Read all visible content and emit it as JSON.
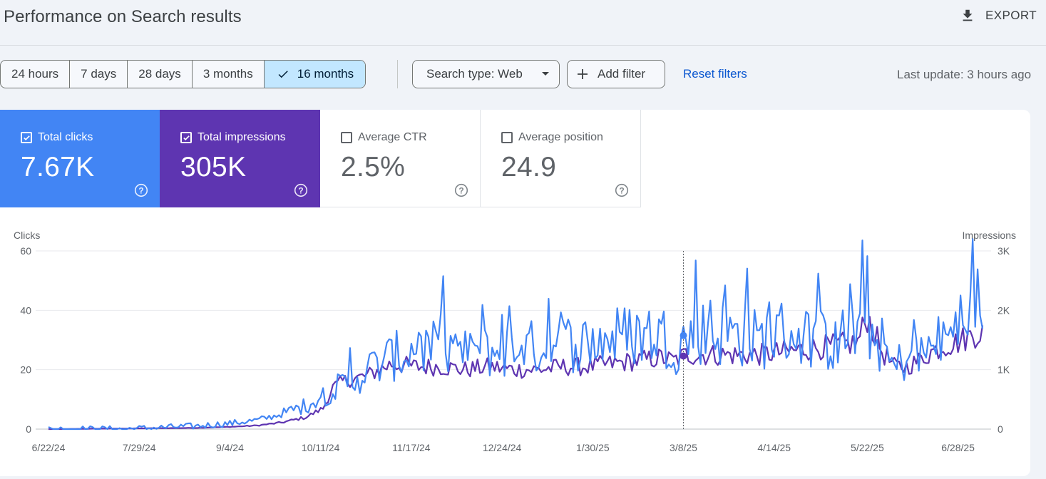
{
  "header": {
    "title": "Performance on Search results",
    "export_label": "EXPORT"
  },
  "toolbar": {
    "ranges": [
      "24 hours",
      "7 days",
      "28 days",
      "3 months",
      "16 months"
    ],
    "selected_range": "16 months",
    "search_type": "Search type: Web",
    "add_filter": "Add filter",
    "reset_filters": "Reset filters",
    "last_update": "Last update: 3 hours ago"
  },
  "metrics": {
    "clicks": {
      "label": "Total clicks",
      "value": "7.67K",
      "checked": true,
      "color": "#4285f4"
    },
    "impressions": {
      "label": "Total impressions",
      "value": "305K",
      "checked": true,
      "color": "#5e35b1"
    },
    "ctr": {
      "label": "Average CTR",
      "value": "2.5%",
      "checked": false
    },
    "position": {
      "label": "Average position",
      "value": "24.9",
      "checked": false
    }
  },
  "chart_data": {
    "type": "line",
    "left_axis_title": "Clicks",
    "right_axis_title": "Impressions",
    "left_ticks": [
      "60",
      "40",
      "20",
      "0"
    ],
    "right_ticks": [
      "3K",
      "2K",
      "1K",
      "0"
    ],
    "ylim_left": [
      0,
      60
    ],
    "ylim_right": [
      0,
      3000
    ],
    "x_ticks": [
      "6/22/24",
      "7/29/24",
      "9/4/24",
      "10/11/24",
      "11/17/24",
      "12/24/24",
      "1/30/25",
      "3/8/25",
      "4/14/25",
      "5/22/25",
      "6/28/25"
    ],
    "x_domain_days": [
      0,
      381
    ],
    "x_tick_days": [
      0,
      37,
      74,
      111,
      148,
      185,
      222,
      259,
      296,
      334,
      371
    ],
    "marker_day": 259,
    "grid": true,
    "series": [
      {
        "name": "Total clicks",
        "axis": "left",
        "color": "#4285f4",
        "anchors": [
          [
            0,
            0
          ],
          [
            30,
            0
          ],
          [
            60,
            1
          ],
          [
            75,
            2
          ],
          [
            85,
            3
          ],
          [
            95,
            5
          ],
          [
            105,
            8
          ],
          [
            115,
            13
          ],
          [
            122,
            15
          ],
          [
            130,
            20
          ],
          [
            140,
            24
          ],
          [
            150,
            27
          ],
          [
            160,
            27
          ],
          [
            170,
            25
          ],
          [
            180,
            26
          ],
          [
            190,
            26
          ],
          [
            200,
            28
          ],
          [
            210,
            29
          ],
          [
            220,
            29
          ],
          [
            230,
            31
          ],
          [
            240,
            32
          ],
          [
            250,
            32
          ],
          [
            255,
            28
          ],
          [
            260,
            30
          ],
          [
            265,
            33
          ],
          [
            270,
            32
          ],
          [
            280,
            32
          ],
          [
            290,
            30
          ],
          [
            300,
            33
          ],
          [
            310,
            31
          ],
          [
            320,
            29
          ],
          [
            330,
            33
          ],
          [
            335,
            33
          ],
          [
            340,
            28
          ],
          [
            345,
            20
          ],
          [
            350,
            25
          ],
          [
            355,
            24
          ],
          [
            360,
            27
          ],
          [
            365,
            30
          ],
          [
            370,
            33
          ],
          [
            375,
            36
          ],
          [
            381,
            36
          ]
        ]
      },
      {
        "name": "Total impressions",
        "axis": "right",
        "color": "#5e35b1",
        "anchors": [
          [
            0,
            0
          ],
          [
            60,
            20
          ],
          [
            75,
            40
          ],
          [
            85,
            60
          ],
          [
            95,
            110
          ],
          [
            105,
            200
          ],
          [
            112,
            350
          ],
          [
            116,
            700
          ],
          [
            120,
            800
          ],
          [
            130,
            900
          ],
          [
            140,
            1100
          ],
          [
            150,
            1050
          ],
          [
            160,
            1050
          ],
          [
            170,
            1000
          ],
          [
            180,
            1050
          ],
          [
            190,
            1000
          ],
          [
            200,
            1000
          ],
          [
            210,
            1050
          ],
          [
            220,
            1050
          ],
          [
            230,
            1100
          ],
          [
            240,
            1150
          ],
          [
            250,
            1200
          ],
          [
            255,
            1150
          ],
          [
            260,
            1250
          ],
          [
            270,
            1250
          ],
          [
            280,
            1250
          ],
          [
            290,
            1250
          ],
          [
            300,
            1300
          ],
          [
            310,
            1350
          ],
          [
            320,
            1400
          ],
          [
            330,
            1450
          ],
          [
            334,
            1900
          ],
          [
            340,
            1300
          ],
          [
            345,
            1050
          ],
          [
            350,
            1050
          ],
          [
            355,
            1150
          ],
          [
            360,
            1300
          ],
          [
            365,
            1400
          ],
          [
            370,
            1450
          ],
          [
            375,
            1550
          ],
          [
            381,
            1650
          ]
        ]
      }
    ]
  }
}
